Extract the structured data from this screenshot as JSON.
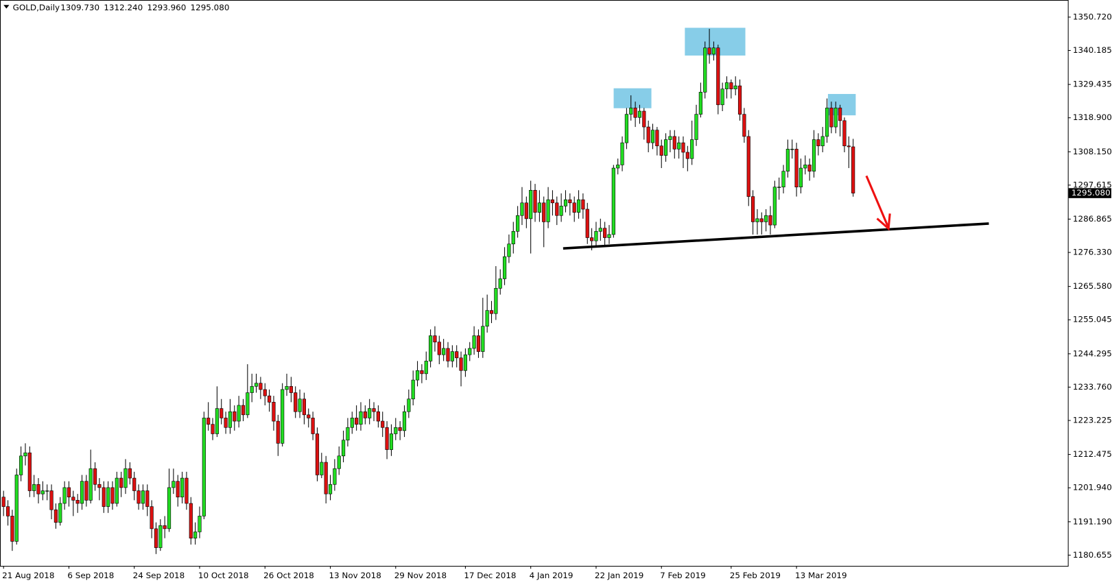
{
  "chart_data": {
    "type": "candlestick",
    "title": "GOLD,Daily",
    "header_labels": [
      "1309.730",
      "1312.240",
      "1293.960",
      "1295.080"
    ],
    "categories": [
      "21 Aug 2018",
      null,
      null,
      null,
      null,
      null,
      null,
      null,
      null,
      null,
      null,
      null,
      null,
      null,
      null,
      "6 Sep 2018",
      null,
      null,
      null,
      null,
      null,
      null,
      null,
      null,
      null,
      null,
      null,
      null,
      null,
      null,
      "24 Sep 2018",
      null,
      null,
      null,
      null,
      null,
      null,
      null,
      null,
      null,
      null,
      null,
      null,
      null,
      null,
      "10 Oct 2018",
      null,
      null,
      null,
      null,
      null,
      null,
      null,
      null,
      null,
      null,
      null,
      null,
      null,
      null,
      "26 Oct 2018",
      null,
      null,
      null,
      null,
      null,
      null,
      null,
      null,
      null,
      null,
      null,
      null,
      null,
      null,
      "13 Nov 2018",
      null,
      null,
      null,
      null,
      null,
      null,
      null,
      null,
      null,
      null,
      null,
      null,
      null,
      null,
      "29 Nov 2018",
      null,
      null,
      null,
      null,
      null,
      null,
      null,
      null,
      null,
      null,
      null,
      null,
      null,
      null,
      null,
      "17 Dec 2018",
      null,
      null,
      null,
      null,
      null,
      null,
      null,
      null,
      null,
      null,
      null,
      null,
      null,
      null,
      "4 Jan 2019",
      null,
      null,
      null,
      null,
      null,
      null,
      null,
      null,
      null,
      null,
      null,
      null,
      null,
      null,
      "22 Jan 2019",
      null,
      null,
      null,
      null,
      null,
      null,
      null,
      null,
      null,
      null,
      null,
      null,
      null,
      null,
      "7 Feb 2019",
      null,
      null,
      null,
      null,
      null,
      null,
      null,
      null,
      null,
      null,
      null,
      null,
      null,
      null,
      null,
      "25 Feb 2019",
      null,
      null,
      null,
      null,
      null,
      null,
      null,
      null,
      null,
      null,
      null,
      null,
      null,
      null,
      "13 Mar 2019",
      null,
      null,
      null,
      null,
      null,
      null,
      null,
      null,
      null,
      null,
      null,
      null,
      null
    ],
    "open": [
      1199,
      1196,
      1193,
      1185,
      1206,
      1212,
      1213,
      1201,
      1203,
      1200,
      1201,
      1201,
      1195,
      1191,
      1197,
      1202,
      1199,
      1198,
      1197,
      1204,
      1198,
      1208,
      1203,
      1202,
      1196,
      1202,
      1197,
      1205,
      1202,
      1208,
      1205,
      1201,
      1197,
      1201,
      1196,
      1189,
      1183,
      1190,
      1189,
      1202,
      1204,
      1199,
      1205,
      1197,
      1186,
      1188,
      1193,
      1224,
      1222,
      1219,
      1227,
      1224,
      1221,
      1226,
      1223,
      1228,
      1225,
      1232,
      1234,
      1235,
      1233,
      1231,
      1229,
      1223,
      1216,
      1233,
      1234,
      1232,
      1226,
      1230,
      1225,
      1224,
      1219,
      1206,
      1210,
      1200,
      1203,
      1208,
      1212,
      1217,
      1221,
      1224,
      1222,
      1226,
      1224,
      1227,
      1226,
      1223,
      1221,
      1214,
      1219,
      1221,
      1220,
      1226,
      1230,
      1236,
      1239,
      1238,
      1242,
      1250,
      1248,
      1244,
      1246,
      1242,
      1245,
      1243,
      1239,
      1244,
      1246,
      1250,
      1245,
      1253,
      1258,
      1257,
      1265,
      1268,
      1275,
      1279,
      1283,
      1288,
      1292,
      1287,
      1296,
      1289,
      1292,
      1286,
      1293,
      1292,
      1288,
      1291,
      1293,
      1292,
      1289,
      1293,
      1290,
      1281,
      1280,
      1283,
      1284,
      1281,
      1282,
      1303,
      1304,
      1311,
      1320,
      1322,
      1319,
      1321,
      1316,
      1311,
      1315,
      1310,
      1307,
      1312,
      1313,
      1309,
      1311,
      1308,
      1306,
      1312,
      1320,
      1327,
      1341,
      1339,
      1341,
      1323,
      1328,
      1330,
      1328,
      1329,
      1320,
      1313,
      1294,
      1286,
      1287,
      1286,
      1288,
      1285,
      1297,
      1297,
      1302,
      1309,
      1309,
      1297,
      1303,
      1304,
      1302,
      1312,
      1310,
      1313,
      1322,
      1316,
      1322,
      1318,
      1310,
      1309.73
    ],
    "high": [
      1201,
      1198,
      1195,
      1208,
      1215,
      1216,
      1215,
      1206,
      1205,
      1204,
      1203,
      1203,
      1197,
      1199,
      1204,
      1204,
      1201,
      1200,
      1206,
      1206,
      1214,
      1210,
      1205,
      1204,
      1204,
      1204,
      1207,
      1207,
      1211,
      1210,
      1207,
      1203,
      1203,
      1203,
      1198,
      1191,
      1192,
      1193,
      1208,
      1208,
      1206,
      1207,
      1207,
      1199,
      1191,
      1196,
      1226,
      1229,
      1224,
      1234,
      1230,
      1226,
      1230,
      1228,
      1231,
      1230,
      1241,
      1238,
      1238,
      1237,
      1235,
      1233,
      1231,
      1225,
      1235,
      1238,
      1237,
      1234,
      1233,
      1232,
      1227,
      1226,
      1221,
      1213,
      1212,
      1206,
      1211,
      1215,
      1220,
      1224,
      1226,
      1228,
      1229,
      1228,
      1230,
      1229,
      1228,
      1226,
      1223,
      1222,
      1224,
      1223,
      1228,
      1233,
      1239,
      1242,
      1241,
      1245,
      1252,
      1253,
      1250,
      1249,
      1248,
      1247,
      1247,
      1245,
      1246,
      1248,
      1253,
      1252,
      1262,
      1263,
      1261,
      1272,
      1271,
      1278,
      1282,
      1286,
      1291,
      1297,
      1294,
      1299,
      1298,
      1296,
      1294,
      1297,
      1296,
      1294,
      1295,
      1296,
      1295,
      1294,
      1296,
      1295,
      1292,
      1284,
      1286,
      1287,
      1286,
      1285,
      1304,
      1306,
      1313,
      1322,
      1326,
      1324,
      1323,
      1322,
      1318,
      1317,
      1316,
      1312,
      1314,
      1315,
      1315,
      1313,
      1313,
      1310,
      1318,
      1323,
      1330,
      1343,
      1347,
      1343,
      1342,
      1330,
      1332,
      1331,
      1332,
      1331,
      1322,
      1315,
      1296,
      1290,
      1289,
      1290,
      1291,
      1299,
      1300,
      1304,
      1312,
      1312,
      1311,
      1306,
      1307,
      1306,
      1315,
      1314,
      1316,
      1325,
      1324,
      1324,
      1323,
      1319,
      1313,
      1312.24
    ],
    "low": [
      1193,
      1190,
      1182,
      1184,
      1204,
      1209,
      1199,
      1199,
      1197,
      1198,
      1198,
      1192,
      1189,
      1190,
      1195,
      1196,
      1193,
      1194,
      1195,
      1196,
      1197,
      1201,
      1198,
      1194,
      1194,
      1195,
      1196,
      1199,
      1200,
      1203,
      1198,
      1195,
      1195,
      1193,
      1186,
      1181,
      1182,
      1186,
      1188,
      1200,
      1196,
      1197,
      1195,
      1184,
      1184,
      1186,
      1192,
      1220,
      1217,
      1218,
      1222,
      1219,
      1219,
      1220,
      1221,
      1223,
      1224,
      1229,
      1232,
      1230,
      1228,
      1226,
      1220,
      1212,
      1215,
      1231,
      1229,
      1224,
      1224,
      1222,
      1221,
      1217,
      1204,
      1205,
      1197,
      1198,
      1201,
      1206,
      1210,
      1215,
      1219,
      1220,
      1220,
      1222,
      1222,
      1223,
      1221,
      1218,
      1211,
      1212,
      1217,
      1217,
      1218,
      1224,
      1228,
      1234,
      1235,
      1236,
      1240,
      1245,
      1241,
      1242,
      1240,
      1240,
      1240,
      1234,
      1237,
      1242,
      1244,
      1243,
      1243,
      1251,
      1254,
      1255,
      1263,
      1266,
      1273,
      1276,
      1281,
      1285,
      1284,
      1276,
      1286,
      1286,
      1278,
      1284,
      1288,
      1285,
      1286,
      1289,
      1288,
      1286,
      1287,
      1287,
      1279,
      1277,
      1278,
      1280,
      1278,
      1279,
      1281,
      1301,
      1302,
      1309,
      1318,
      1316,
      1317,
      1312,
      1308,
      1309,
      1307,
      1303,
      1305,
      1308,
      1306,
      1306,
      1303,
      1302,
      1304,
      1310,
      1319,
      1325,
      1336,
      1337,
      1320,
      1321,
      1325,
      1325,
      1326,
      1318,
      1311,
      1291,
      1282,
      1282,
      1282,
      1283,
      1282,
      1284,
      1293,
      1295,
      1300,
      1306,
      1294,
      1295,
      1301,
      1299,
      1300,
      1307,
      1308,
      1311,
      1314,
      1314,
      1313,
      1308,
      1303,
      1293.96
    ],
    "close": [
      1196,
      1193,
      1185,
      1206,
      1212,
      1213,
      1201,
      1203,
      1200,
      1201,
      1201,
      1195,
      1191,
      1197,
      1202,
      1199,
      1198,
      1197,
      1204,
      1198,
      1208,
      1203,
      1202,
      1196,
      1202,
      1197,
      1205,
      1202,
      1208,
      1205,
      1201,
      1197,
      1201,
      1196,
      1189,
      1183,
      1190,
      1189,
      1202,
      1204,
      1199,
      1205,
      1197,
      1186,
      1188,
      1193,
      1224,
      1222,
      1219,
      1227,
      1224,
      1221,
      1226,
      1223,
      1228,
      1225,
      1232,
      1234,
      1235,
      1233,
      1231,
      1229,
      1223,
      1216,
      1233,
      1234,
      1232,
      1226,
      1230,
      1225,
      1224,
      1219,
      1206,
      1210,
      1200,
      1203,
      1208,
      1212,
      1217,
      1221,
      1224,
      1222,
      1226,
      1224,
      1227,
      1226,
      1223,
      1221,
      1214,
      1219,
      1221,
      1220,
      1226,
      1230,
      1236,
      1239,
      1238,
      1242,
      1250,
      1248,
      1244,
      1246,
      1242,
      1245,
      1243,
      1239,
      1244,
      1246,
      1250,
      1245,
      1253,
      1258,
      1257,
      1265,
      1268,
      1275,
      1279,
      1283,
      1288,
      1292,
      1287,
      1296,
      1289,
      1292,
      1286,
      1293,
      1292,
      1288,
      1291,
      1293,
      1292,
      1289,
      1293,
      1290,
      1281,
      1280,
      1283,
      1284,
      1281,
      1282,
      1303,
      1304,
      1311,
      1320,
      1322,
      1319,
      1321,
      1316,
      1311,
      1315,
      1310,
      1307,
      1312,
      1313,
      1309,
      1311,
      1308,
      1306,
      1312,
      1320,
      1327,
      1341,
      1339,
      1341,
      1323,
      1328,
      1330,
      1328,
      1329,
      1320,
      1313,
      1294,
      1286,
      1287,
      1286,
      1288,
      1285,
      1297,
      1297,
      1302,
      1309,
      1309,
      1297,
      1303,
      1304,
      1302,
      1312,
      1310,
      1313,
      1322,
      1316,
      1322,
      1318,
      1310,
      1309.73,
      1295.08
    ],
    "up_color": "#22dd22",
    "down_color": "#dd1111",
    "wick_color": "#000000",
    "ylim": [
      1177.25,
      1356.12
    ],
    "yticks": [
      {
        "value": 1350.72,
        "label": "1350.720"
      },
      {
        "value": 1340.185,
        "label": "1340.185"
      },
      {
        "value": 1329.435,
        "label": "1329.435"
      },
      {
        "value": 1318.9,
        "label": "1318.900"
      },
      {
        "value": 1308.15,
        "label": "1308.150"
      },
      {
        "value": 1297.615,
        "label": "1297.615"
      },
      {
        "value": 1286.865,
        "label": "1286.865"
      },
      {
        "value": 1276.33,
        "label": "1276.330"
      },
      {
        "value": 1265.58,
        "label": "1265.580"
      },
      {
        "value": 1255.045,
        "label": "1255.045"
      },
      {
        "value": 1244.295,
        "label": "1244.295"
      },
      {
        "value": 1233.76,
        "label": "1233.760"
      },
      {
        "value": 1223.225,
        "label": "1223.225"
      },
      {
        "value": 1212.475,
        "label": "1212.475"
      },
      {
        "value": 1201.94,
        "label": "1201.940"
      },
      {
        "value": 1191.19,
        "label": "1191.190"
      },
      {
        "value": 1180.655,
        "label": "1180.655"
      }
    ],
    "grid": false,
    "last_price": {
      "value": 1295.08,
      "label": "1295.080"
    }
  }
}
